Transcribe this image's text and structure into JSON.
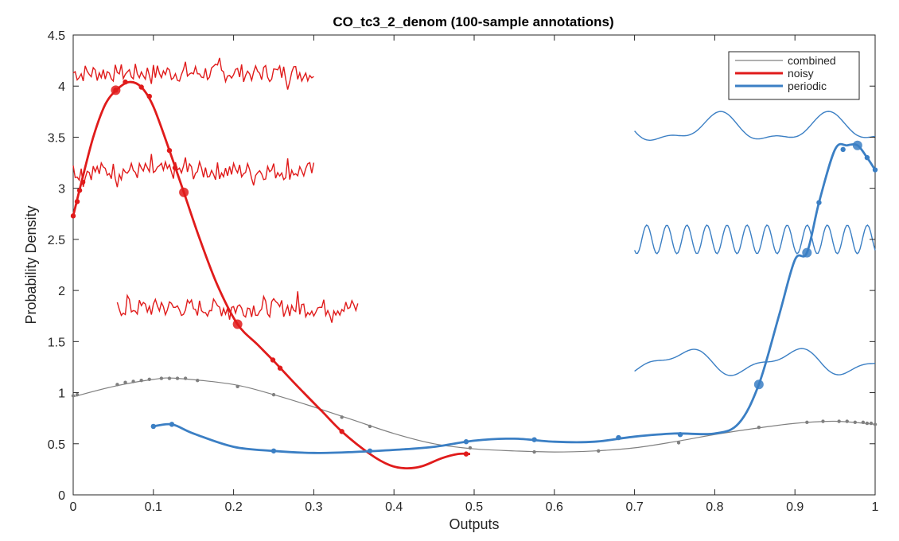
{
  "chart_data": {
    "type": "line",
    "title": "CO_tc3_2_denom (100-sample annotations)",
    "xlabel": "Outputs",
    "ylabel": "Probability Density",
    "xlim": [
      0,
      1
    ],
    "ylim": [
      0,
      4.5
    ],
    "xticks": [
      0,
      0.1,
      0.2,
      0.3,
      0.4,
      0.5,
      0.6,
      0.7,
      0.8,
      0.9,
      1
    ],
    "xtick_labels": [
      "0",
      "0.1",
      "0.2",
      "0.3",
      "0.4",
      "0.5",
      "0.6",
      "0.7",
      "0.8",
      "0.9",
      "1"
    ],
    "yticks": [
      0,
      0.5,
      1,
      1.5,
      2,
      2.5,
      3,
      3.5,
      4,
      4.5
    ],
    "ytick_labels": [
      "0",
      "0.5",
      "1",
      "1.5",
      "2",
      "2.5",
      "3",
      "3.5",
      "4",
      "4.5"
    ],
    "legend": {
      "position": "top-right"
    },
    "series": [
      {
        "name": "combined",
        "color": "#808080",
        "line_width": 1.2,
        "curve": [
          [
            0,
            0.96
          ],
          [
            0.05,
            1.06
          ],
          [
            0.1,
            1.13
          ],
          [
            0.13,
            1.14
          ],
          [
            0.2,
            1.08
          ],
          [
            0.25,
            0.98
          ],
          [
            0.3,
            0.86
          ],
          [
            0.35,
            0.73
          ],
          [
            0.4,
            0.6
          ],
          [
            0.45,
            0.5
          ],
          [
            0.5,
            0.45
          ],
          [
            0.55,
            0.43
          ],
          [
            0.6,
            0.42
          ],
          [
            0.65,
            0.43
          ],
          [
            0.7,
            0.46
          ],
          [
            0.75,
            0.52
          ],
          [
            0.8,
            0.59
          ],
          [
            0.85,
            0.65
          ],
          [
            0.9,
            0.7
          ],
          [
            0.95,
            0.72
          ],
          [
            1,
            0.69
          ]
        ],
        "points": [
          [
            0,
            0.97
          ],
          [
            0.005,
            0.98
          ],
          [
            0.055,
            1.08
          ],
          [
            0.065,
            1.1
          ],
          [
            0.075,
            1.11
          ],
          [
            0.085,
            1.12
          ],
          [
            0.095,
            1.13
          ],
          [
            0.11,
            1.14
          ],
          [
            0.12,
            1.14
          ],
          [
            0.13,
            1.14
          ],
          [
            0.14,
            1.14
          ],
          [
            0.155,
            1.12
          ],
          [
            0.205,
            1.06
          ],
          [
            0.25,
            0.98
          ],
          [
            0.335,
            0.76
          ],
          [
            0.37,
            0.67
          ],
          [
            0.495,
            0.46
          ],
          [
            0.575,
            0.42
          ],
          [
            0.655,
            0.43
          ],
          [
            0.755,
            0.51
          ],
          [
            0.855,
            0.66
          ],
          [
            0.915,
            0.71
          ],
          [
            0.935,
            0.72
          ],
          [
            0.955,
            0.72
          ],
          [
            0.965,
            0.72
          ],
          [
            0.975,
            0.71
          ],
          [
            0.985,
            0.71
          ],
          [
            0.99,
            0.7
          ],
          [
            0.995,
            0.7
          ],
          [
            1,
            0.69
          ]
        ]
      },
      {
        "name": "noisy",
        "color": "#e01b1b",
        "line_width": 2.8,
        "curve": [
          [
            0,
            2.73
          ],
          [
            0.01,
            3.05
          ],
          [
            0.025,
            3.5
          ],
          [
            0.04,
            3.82
          ],
          [
            0.055,
            3.97
          ],
          [
            0.07,
            4.04
          ],
          [
            0.085,
            3.99
          ],
          [
            0.1,
            3.8
          ],
          [
            0.12,
            3.37
          ],
          [
            0.138,
            2.96
          ],
          [
            0.158,
            2.5
          ],
          [
            0.18,
            2.05
          ],
          [
            0.205,
            1.67
          ],
          [
            0.23,
            1.47
          ],
          [
            0.25,
            1.31
          ],
          [
            0.28,
            1.06
          ],
          [
            0.31,
            0.82
          ],
          [
            0.335,
            0.62
          ],
          [
            0.37,
            0.4
          ],
          [
            0.395,
            0.29
          ],
          [
            0.415,
            0.26
          ],
          [
            0.435,
            0.28
          ],
          [
            0.46,
            0.36
          ],
          [
            0.48,
            0.4
          ],
          [
            0.495,
            0.4
          ]
        ],
        "points": [
          [
            0,
            2.73
          ],
          [
            0.005,
            2.87
          ],
          [
            0.008,
            2.98
          ],
          [
            0.012,
            3.06
          ],
          [
            0.053,
            3.96
          ],
          [
            0.065,
            4.04
          ],
          [
            0.085,
            3.99
          ],
          [
            0.095,
            3.9
          ],
          [
            0.12,
            3.37
          ],
          [
            0.127,
            3.2
          ],
          [
            0.249,
            1.32
          ],
          [
            0.258,
            1.24
          ],
          [
            0.335,
            0.62
          ],
          [
            0.49,
            0.4
          ]
        ],
        "large_points": [
          [
            0.053,
            3.96
          ],
          [
            0.138,
            2.96
          ],
          [
            0.205,
            1.67
          ]
        ]
      },
      {
        "name": "periodic",
        "color": "#3b7fc4",
        "line_width": 2.8,
        "curve": [
          [
            0.1,
            0.67
          ],
          [
            0.123,
            0.69
          ],
          [
            0.15,
            0.6
          ],
          [
            0.2,
            0.47
          ],
          [
            0.25,
            0.43
          ],
          [
            0.3,
            0.41
          ],
          [
            0.35,
            0.42
          ],
          [
            0.4,
            0.44
          ],
          [
            0.45,
            0.47
          ],
          [
            0.5,
            0.53
          ],
          [
            0.55,
            0.55
          ],
          [
            0.6,
            0.52
          ],
          [
            0.65,
            0.52
          ],
          [
            0.7,
            0.57
          ],
          [
            0.75,
            0.6
          ],
          [
            0.8,
            0.6
          ],
          [
            0.83,
            0.7
          ],
          [
            0.855,
            1.08
          ],
          [
            0.88,
            1.75
          ],
          [
            0.9,
            2.3
          ],
          [
            0.915,
            2.37
          ],
          [
            0.93,
            2.86
          ],
          [
            0.95,
            3.38
          ],
          [
            0.965,
            3.42
          ],
          [
            0.978,
            3.42
          ],
          [
            0.99,
            3.3
          ],
          [
            1,
            3.18
          ]
        ],
        "points": [
          [
            0.1,
            0.67
          ],
          [
            0.123,
            0.69
          ],
          [
            0.25,
            0.43
          ],
          [
            0.37,
            0.43
          ],
          [
            0.49,
            0.52
          ],
          [
            0.575,
            0.54
          ],
          [
            0.68,
            0.56
          ],
          [
            0.757,
            0.59
          ],
          [
            0.93,
            2.86
          ],
          [
            0.96,
            3.38
          ],
          [
            0.99,
            3.3
          ],
          [
            1,
            3.18
          ]
        ],
        "large_points": [
          [
            0.855,
            1.08
          ],
          [
            0.915,
            2.37
          ],
          [
            0.978,
            3.42
          ]
        ]
      }
    ],
    "annotations": [
      {
        "series": "noisy",
        "x": [
          0.0,
          0.3
        ],
        "center": 4.13,
        "amplitude": 0.09,
        "kind": "noise"
      },
      {
        "series": "noisy",
        "x": [
          0.0,
          0.3
        ],
        "center": 3.17,
        "amplitude": 0.09,
        "kind": "noise"
      },
      {
        "series": "noisy",
        "x": [
          0.055,
          0.355
        ],
        "center": 1.83,
        "amplitude": 0.09,
        "kind": "noise"
      },
      {
        "series": "periodic",
        "x": [
          0.7,
          1.0
        ],
        "center": 3.58,
        "amplitude": 0.15,
        "kind": "slow-wave"
      },
      {
        "series": "periodic",
        "x": [
          0.7,
          1.0
        ],
        "center": 2.5,
        "amplitude": 0.14,
        "kind": "fast-wave"
      },
      {
        "series": "periodic",
        "x": [
          0.7,
          1.0
        ],
        "center": 1.3,
        "amplitude": 0.13,
        "kind": "slow-wave"
      }
    ]
  }
}
